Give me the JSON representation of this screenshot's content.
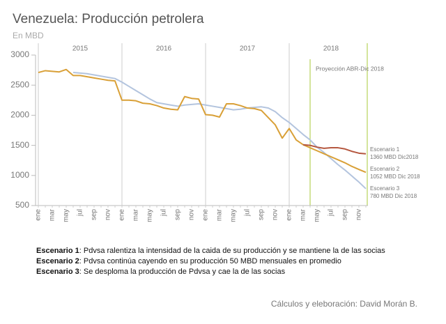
{
  "chart_data": {
    "type": "line",
    "title": "Venezuela: Producción petrolera",
    "subtitle": "En MBD",
    "years": [
      "2015",
      "2016",
      "2017",
      "2018"
    ],
    "categories": [
      "ene",
      null,
      "mar",
      null,
      "may",
      null,
      "jul",
      null,
      "sep",
      null,
      "nov",
      null,
      "ene",
      null,
      "mar",
      null,
      "may",
      null,
      "jul",
      null,
      "sep",
      null,
      "nov",
      null,
      "ene",
      null,
      "mar",
      null,
      "may",
      null,
      "jul",
      null,
      "sep",
      null,
      "nov",
      null,
      "ene",
      null,
      "mar",
      null,
      "may",
      null,
      "jul",
      null,
      "sep",
      null,
      "nov",
      null
    ],
    "ylim": [
      500,
      3000
    ],
    "yticks": [
      500,
      1000,
      1500,
      2000,
      2500,
      3000
    ],
    "series": [
      {
        "color": "#b3c4de",
        "values": [
          null,
          null,
          null,
          null,
          null,
          2710,
          2700,
          2690,
          2670,
          2650,
          2630,
          2610,
          2550,
          2480,
          2410,
          2340,
          2270,
          2210,
          2190,
          2170,
          2150,
          2170,
          2180,
          2190,
          2170,
          2150,
          2130,
          2110,
          2090,
          2100,
          2120,
          2130,
          2140,
          2120,
          2060,
          1960,
          1880,
          1780,
          1680,
          1590,
          1470,
          1380,
          1280,
          1180,
          1090,
          990,
          890,
          780
        ]
      },
      {
        "color": "#d9a037",
        "values": [
          2710,
          2740,
          2730,
          2720,
          2760,
          2660,
          2660,
          2640,
          2620,
          2600,
          2580,
          2570,
          2250,
          2250,
          2240,
          2200,
          2190,
          2160,
          2120,
          2100,
          2090,
          2310,
          2280,
          2270,
          2010,
          2000,
          1970,
          2190,
          2190,
          2160,
          2120,
          2110,
          2080,
          1960,
          1840,
          1620,
          1780,
          1590,
          1510,
          1460,
          1410,
          1360,
          1310,
          1260,
          1210,
          1150,
          1100,
          1052
        ]
      },
      {
        "color": "#b5573f",
        "values": [
          null,
          null,
          null,
          null,
          null,
          null,
          null,
          null,
          null,
          null,
          null,
          null,
          null,
          null,
          null,
          null,
          null,
          null,
          null,
          null,
          null,
          null,
          null,
          null,
          null,
          null,
          null,
          null,
          null,
          null,
          null,
          null,
          null,
          null,
          null,
          null,
          null,
          null,
          1510,
          1500,
          1470,
          1450,
          1460,
          1460,
          1440,
          1400,
          1370,
          1360
        ]
      }
    ],
    "annotations": [
      "Proyección ABR-Dic 2018",
      "Escenario 1",
      "1360 MBD Dic2018",
      "Escenario 2",
      "1052 MBD Dic 2018",
      "Escenario 3",
      "780 MBD  Dic 2018"
    ],
    "notes": [
      {
        "label": "Escenario 1",
        "text": ": Pdvsa ralentiza la intensidad de la caida de su producción y se mantiene la de las socias"
      },
      {
        "label": "Escenario 2",
        "text": ": Pdvsa continúa cayendo en su producción 50 MBD mensuales en promedio"
      },
      {
        "label": "Escenario 3",
        "text": ": Se desploma la producción de Pdvsa y cae la de las socias"
      }
    ],
    "credit": "Cálculos y eleboración: David Morán B."
  }
}
